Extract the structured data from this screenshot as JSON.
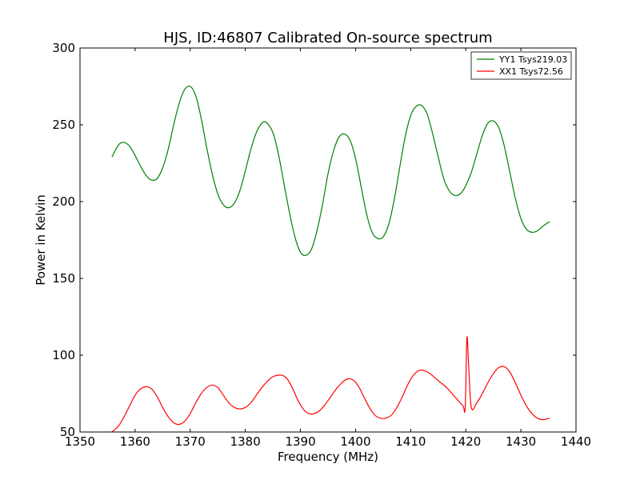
{
  "chart_data": {
    "type": "line",
    "title": "HJS, ID:46807 Calibrated On-source spectrum",
    "xlabel": "Frequency (MHz)",
    "ylabel": "Power in Kelvin",
    "xlim": [
      1350,
      1440
    ],
    "ylim": [
      50,
      300
    ],
    "xticks": [
      "1350",
      "1360",
      "1370",
      "1380",
      "1390",
      "1400",
      "1410",
      "1420",
      "1430",
      "1440"
    ],
    "yticks": [
      "50",
      "100",
      "150",
      "200",
      "250",
      "300"
    ],
    "grid": false,
    "legend_position": "top-right",
    "series": [
      {
        "name": "YY1 Tsys219.03",
        "color": "#008000",
        "points": [
          [
            1355.8,
            229
          ],
          [
            1357,
            237
          ],
          [
            1358,
            238.5
          ],
          [
            1359,
            236
          ],
          [
            1360,
            230
          ],
          [
            1361,
            223
          ],
          [
            1362,
            217
          ],
          [
            1363,
            214
          ],
          [
            1364,
            215
          ],
          [
            1365,
            222
          ],
          [
            1366,
            234
          ],
          [
            1367,
            250
          ],
          [
            1368,
            264
          ],
          [
            1369,
            273
          ],
          [
            1370,
            275
          ],
          [
            1371,
            269
          ],
          [
            1372,
            254
          ],
          [
            1373,
            235
          ],
          [
            1374,
            218
          ],
          [
            1375,
            205
          ],
          [
            1376,
            198
          ],
          [
            1377,
            196
          ],
          [
            1378,
            199
          ],
          [
            1379,
            207
          ],
          [
            1380,
            220
          ],
          [
            1381,
            234
          ],
          [
            1382,
            245
          ],
          [
            1383,
            251
          ],
          [
            1383.8,
            251.5
          ],
          [
            1385,
            245
          ],
          [
            1386,
            231
          ],
          [
            1387,
            212
          ],
          [
            1388,
            193
          ],
          [
            1389,
            177
          ],
          [
            1390,
            167
          ],
          [
            1391,
            165
          ],
          [
            1392,
            169
          ],
          [
            1393,
            181
          ],
          [
            1394,
            198
          ],
          [
            1395,
            218
          ],
          [
            1396,
            233
          ],
          [
            1397,
            242
          ],
          [
            1398,
            244
          ],
          [
            1399,
            240
          ],
          [
            1400,
            228
          ],
          [
            1401,
            210
          ],
          [
            1402,
            192
          ],
          [
            1403,
            180
          ],
          [
            1404,
            176
          ],
          [
            1405,
            177
          ],
          [
            1406,
            185
          ],
          [
            1407,
            201
          ],
          [
            1408,
            222
          ],
          [
            1409,
            242
          ],
          [
            1410,
            256
          ],
          [
            1411,
            262
          ],
          [
            1412,
            262.5
          ],
          [
            1413,
            257
          ],
          [
            1414,
            244
          ],
          [
            1415,
            229
          ],
          [
            1416,
            215
          ],
          [
            1417,
            207
          ],
          [
            1418,
            204
          ],
          [
            1419,
            205
          ],
          [
            1419.8,
            209
          ],
          [
            1420.2,
            212
          ],
          [
            1421,
            219
          ],
          [
            1422,
            231
          ],
          [
            1423,
            243
          ],
          [
            1424,
            251
          ],
          [
            1425,
            252.5
          ],
          [
            1426,
            248
          ],
          [
            1427,
            236
          ],
          [
            1428,
            219
          ],
          [
            1429,
            202
          ],
          [
            1430,
            189
          ],
          [
            1431,
            182
          ],
          [
            1432,
            180
          ],
          [
            1433,
            181
          ],
          [
            1434,
            184
          ],
          [
            1435.2,
            187
          ]
        ]
      },
      {
        "name": "XX1 Tsys72.56",
        "color": "#ff0000",
        "points": [
          [
            1355.8,
            50
          ],
          [
            1357,
            54
          ],
          [
            1358,
            60
          ],
          [
            1359,
            67
          ],
          [
            1360,
            74
          ],
          [
            1361,
            78
          ],
          [
            1362,
            79.5
          ],
          [
            1363,
            78
          ],
          [
            1364,
            73
          ],
          [
            1365,
            66
          ],
          [
            1366,
            60
          ],
          [
            1367,
            56
          ],
          [
            1368,
            55
          ],
          [
            1369,
            57
          ],
          [
            1370,
            62
          ],
          [
            1371,
            69
          ],
          [
            1372,
            75
          ],
          [
            1373,
            79
          ],
          [
            1374,
            80.5
          ],
          [
            1375,
            79
          ],
          [
            1376,
            74
          ],
          [
            1377,
            69
          ],
          [
            1378,
            66
          ],
          [
            1379,
            65
          ],
          [
            1380,
            66
          ],
          [
            1381,
            69
          ],
          [
            1382,
            74
          ],
          [
            1383,
            79
          ],
          [
            1384,
            83
          ],
          [
            1385,
            86
          ],
          [
            1386.5,
            87
          ],
          [
            1387.5,
            85
          ],
          [
            1388.5,
            79
          ],
          [
            1389.5,
            71
          ],
          [
            1390.5,
            65
          ],
          [
            1391.5,
            62
          ],
          [
            1392.5,
            62
          ],
          [
            1393.5,
            64
          ],
          [
            1394.5,
            68
          ],
          [
            1395.5,
            73
          ],
          [
            1396.5,
            78
          ],
          [
            1397.5,
            82
          ],
          [
            1398.5,
            84.5
          ],
          [
            1399.5,
            84
          ],
          [
            1400.5,
            80
          ],
          [
            1401.5,
            73
          ],
          [
            1402.5,
            66
          ],
          [
            1403.5,
            61
          ],
          [
            1404.5,
            59
          ],
          [
            1405.5,
            59
          ],
          [
            1406.5,
            61
          ],
          [
            1407.5,
            66
          ],
          [
            1408.5,
            73
          ],
          [
            1409.5,
            81
          ],
          [
            1410.5,
            87
          ],
          [
            1411.5,
            90
          ],
          [
            1412.5,
            90
          ],
          [
            1413.5,
            88
          ],
          [
            1414.5,
            85
          ],
          [
            1415.5,
            82
          ],
          [
            1416.5,
            79
          ],
          [
            1417.5,
            75
          ],
          [
            1418.5,
            71
          ],
          [
            1419.5,
            67
          ],
          [
            1419.9,
            66
          ],
          [
            1420.2,
            111
          ],
          [
            1420.5,
            95
          ],
          [
            1421,
            66
          ],
          [
            1422,
            69
          ],
          [
            1423,
            75
          ],
          [
            1424,
            82
          ],
          [
            1425,
            88
          ],
          [
            1426,
            92
          ],
          [
            1427,
            92.5
          ],
          [
            1428,
            89
          ],
          [
            1429,
            82
          ],
          [
            1430,
            74
          ],
          [
            1431,
            67
          ],
          [
            1432,
            62
          ],
          [
            1433,
            59
          ],
          [
            1434,
            58
          ],
          [
            1435.2,
            59
          ]
        ]
      }
    ]
  }
}
